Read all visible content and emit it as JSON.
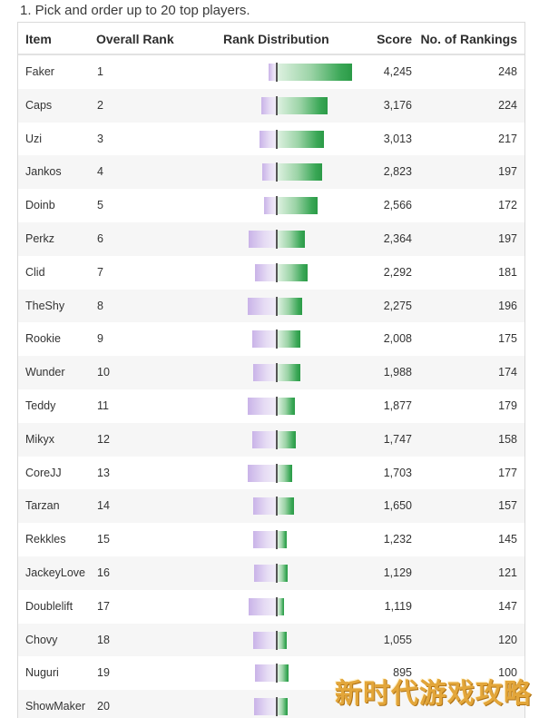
{
  "question": {
    "title": "1. Pick and order up to 20 top players."
  },
  "table": {
    "headers": {
      "item": "Item",
      "overall_rank": "Overall Rank",
      "rank_distribution": "Rank Distribution",
      "score": "Score",
      "num_rankings": "No. of Rankings"
    },
    "rows": [
      {
        "item": "Faker",
        "rank": "1",
        "score": "4,245",
        "count": "248",
        "dist_above_share": 0.06,
        "dist_below_share": 0.94
      },
      {
        "item": "Caps",
        "rank": "2",
        "score": "3,176",
        "count": "224",
        "dist_above_share": 0.15,
        "dist_below_share": 0.85
      },
      {
        "item": "Uzi",
        "rank": "3",
        "score": "3,013",
        "count": "217",
        "dist_above_share": 0.18,
        "dist_below_share": 0.82
      },
      {
        "item": "Jankos",
        "rank": "4",
        "score": "2,823",
        "count": "197",
        "dist_above_share": 0.16,
        "dist_below_share": 0.84
      },
      {
        "item": "Doinb",
        "rank": "5",
        "score": "2,566",
        "count": "172",
        "dist_above_share": 0.16,
        "dist_below_share": 0.84
      },
      {
        "item": "Perkz",
        "rank": "6",
        "score": "2,364",
        "count": "197",
        "dist_above_share": 0.38,
        "dist_below_share": 0.62
      },
      {
        "item": "Clid",
        "rank": "7",
        "score": "2,292",
        "count": "181",
        "dist_above_share": 0.3,
        "dist_below_share": 0.7
      },
      {
        "item": "TheShy",
        "rank": "8",
        "score": "2,275",
        "count": "196",
        "dist_above_share": 0.42,
        "dist_below_share": 0.58
      },
      {
        "item": "Rookie",
        "rank": "9",
        "score": "2,008",
        "count": "175",
        "dist_above_share": 0.4,
        "dist_below_share": 0.6
      },
      {
        "item": "Wunder",
        "rank": "10",
        "score": "1,988",
        "count": "174",
        "dist_above_share": 0.38,
        "dist_below_share": 0.62
      },
      {
        "item": "Teddy",
        "rank": "11",
        "score": "1,877",
        "count": "179",
        "dist_above_share": 0.5,
        "dist_below_share": 0.5
      },
      {
        "item": "Mikyx",
        "rank": "12",
        "score": "1,747",
        "count": "158",
        "dist_above_share": 0.45,
        "dist_below_share": 0.55
      },
      {
        "item": "CoreJJ",
        "rank": "13",
        "score": "1,703",
        "count": "177",
        "dist_above_share": 0.55,
        "dist_below_share": 0.45
      },
      {
        "item": "Tarzan",
        "rank": "14",
        "score": "1,650",
        "count": "157",
        "dist_above_share": 0.47,
        "dist_below_share": 0.53
      },
      {
        "item": "Rekkles",
        "rank": "15",
        "score": "1,232",
        "count": "145",
        "dist_above_share": 0.6,
        "dist_below_share": 0.4
      },
      {
        "item": "JackeyLove",
        "rank": "16",
        "score": "1,129",
        "count": "121",
        "dist_above_share": 0.58,
        "dist_below_share": 0.42
      },
      {
        "item": "Doublelift",
        "rank": "17",
        "score": "1,119",
        "count": "147",
        "dist_above_share": 0.72,
        "dist_below_share": 0.28
      },
      {
        "item": "Chovy",
        "rank": "18",
        "score": "1,055",
        "count": "120",
        "dist_above_share": 0.6,
        "dist_below_share": 0.4
      },
      {
        "item": "Nuguri",
        "rank": "19",
        "score": "895",
        "count": "100",
        "dist_above_share": 0.55,
        "dist_below_share": 0.45
      },
      {
        "item": "ShowMaker",
        "rank": "20",
        "score": "",
        "count": "",
        "dist_above_share": 0.58,
        "dist_below_share": 0.42
      }
    ]
  },
  "watermark": {
    "text": "新时代游戏攻略"
  },
  "colors": {
    "purple_light": "#e6dcf4",
    "purple": "#c9b3e8",
    "green_light": "#ddf1e0",
    "green": "#2b9a47",
    "divider": "#555555",
    "watermark": "#e3a63a"
  }
}
